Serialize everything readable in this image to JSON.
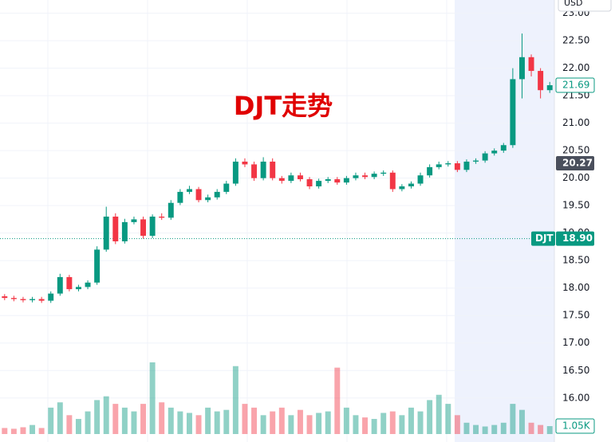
{
  "chart_data": {
    "type": "candlestick",
    "title": "DJT走势",
    "currency": "USD",
    "up_color": "#089981",
    "down_color": "#f23645",
    "open": [
      17.85,
      17.82,
      17.8,
      17.78,
      17.8,
      17.77,
      17.9,
      18.2,
      17.98,
      18.02,
      18.1,
      18.7,
      19.3,
      18.85,
      19.2,
      19.25,
      18.95,
      19.3,
      19.28,
      19.55,
      19.75,
      19.8,
      19.6,
      19.65,
      19.75,
      19.9,
      20.3,
      20.25,
      20.0,
      20.3,
      20.0,
      19.95,
      20.05,
      19.98,
      19.85,
      19.95,
      19.98,
      19.92,
      20.0,
      20.05,
      20.02,
      20.08,
      20.1,
      19.8,
      19.85,
      19.9,
      20.05,
      20.2,
      20.25,
      20.27,
      20.15,
      20.3,
      20.32,
      20.45,
      20.5,
      20.6,
      21.8,
      22.2,
      21.95,
      21.6
    ],
    "high": [
      17.89,
      17.86,
      17.84,
      17.84,
      17.84,
      17.94,
      18.26,
      18.24,
      18.06,
      18.14,
      18.76,
      19.48,
      19.36,
      19.26,
      19.3,
      19.3,
      19.34,
      19.36,
      19.6,
      19.8,
      19.86,
      19.84,
      19.7,
      19.8,
      19.95,
      20.36,
      20.36,
      20.3,
      20.38,
      20.36,
      20.04,
      20.1,
      20.1,
      20.02,
      19.99,
      20.02,
      20.02,
      20.04,
      20.1,
      20.1,
      20.12,
      20.14,
      20.14,
      19.89,
      19.94,
      20.1,
      20.25,
      20.3,
      20.31,
      20.31,
      20.34,
      20.36,
      20.49,
      20.54,
      20.64,
      22.0,
      22.63,
      22.25,
      22.0,
      21.75
    ],
    "low": [
      17.78,
      17.76,
      17.74,
      17.74,
      17.73,
      17.73,
      17.86,
      17.94,
      17.94,
      17.98,
      18.06,
      18.66,
      18.8,
      18.81,
      19.16,
      18.9,
      18.91,
      19.24,
      19.24,
      19.51,
      19.71,
      19.56,
      19.56,
      19.61,
      19.71,
      19.86,
      20.2,
      19.95,
      19.96,
      19.96,
      19.9,
      19.91,
      19.94,
      19.8,
      19.81,
      19.91,
      19.88,
      19.88,
      19.96,
      19.98,
      19.98,
      20.04,
      19.75,
      19.76,
      19.81,
      19.86,
      20.01,
      20.16,
      20.21,
      20.11,
      20.11,
      20.26,
      20.28,
      20.41,
      20.46,
      20.55,
      21.45,
      21.85,
      21.45,
      21.55
    ],
    "close": [
      17.82,
      17.8,
      17.78,
      17.8,
      17.77,
      17.9,
      18.2,
      17.98,
      18.02,
      18.1,
      18.7,
      19.3,
      18.85,
      19.2,
      19.25,
      18.95,
      19.3,
      19.28,
      19.55,
      19.75,
      19.8,
      19.6,
      19.65,
      19.75,
      19.9,
      20.3,
      20.25,
      20.0,
      20.3,
      20.0,
      19.95,
      20.05,
      19.98,
      19.85,
      19.95,
      19.98,
      19.92,
      20.0,
      20.05,
      20.02,
      20.08,
      20.1,
      19.8,
      19.85,
      19.9,
      20.05,
      20.2,
      20.25,
      20.27,
      20.15,
      20.3,
      20.32,
      20.45,
      20.5,
      20.6,
      21.8,
      22.2,
      21.95,
      21.6,
      21.69
    ],
    "volume": [
      800,
      700,
      900,
      1200,
      800,
      3500,
      4200,
      2500,
      2000,
      3000,
      4500,
      5000,
      4000,
      3500,
      3000,
      4000,
      9500,
      4200,
      3500,
      3000,
      2800,
      2500,
      3500,
      3000,
      3200,
      9000,
      4000,
      3500,
      2500,
      3000,
      3500,
      2500,
      3200,
      2500,
      2800,
      3000,
      8800,
      3500,
      2500,
      2200,
      2000,
      2800,
      3000,
      2500,
      3500,
      3000,
      4500,
      5200,
      4000,
      2500,
      1500,
      1200,
      1000,
      1200,
      1500,
      4000,
      3200,
      1500,
      1200,
      1050
    ],
    "volume_label": "1.05K",
    "ylim": [
      15.2,
      23.24
    ],
    "yticks": [
      {
        "value": 16,
        "label": "16.00"
      },
      {
        "value": 16.5,
        "label": "16.50"
      },
      {
        "value": 17,
        "label": "17.00"
      },
      {
        "value": 17.5,
        "label": "17.50"
      },
      {
        "value": 18,
        "label": "18.00"
      },
      {
        "value": 18.5,
        "label": "18.50"
      },
      {
        "value": 19,
        "label": "19.00"
      },
      {
        "value": 19.5,
        "label": "19.50"
      },
      {
        "value": 20,
        "label": "20.00"
      },
      {
        "value": 20.5,
        "label": "20.50"
      },
      {
        "value": 21,
        "label": "21.00"
      },
      {
        "value": 21.5,
        "label": "21.50"
      },
      {
        "value": 22,
        "label": "22.00"
      },
      {
        "value": 22.5,
        "label": "22.50"
      },
      {
        "value": 23,
        "label": "23.00"
      }
    ],
    "grid": true,
    "last_price": {
      "value": 21.69,
      "label": "21.69"
    },
    "prev_close": {
      "value": 20.27,
      "label": "20.27"
    },
    "symbol_line": {
      "symbol": "DJT",
      "value": 18.9,
      "label": "18.90"
    }
  }
}
